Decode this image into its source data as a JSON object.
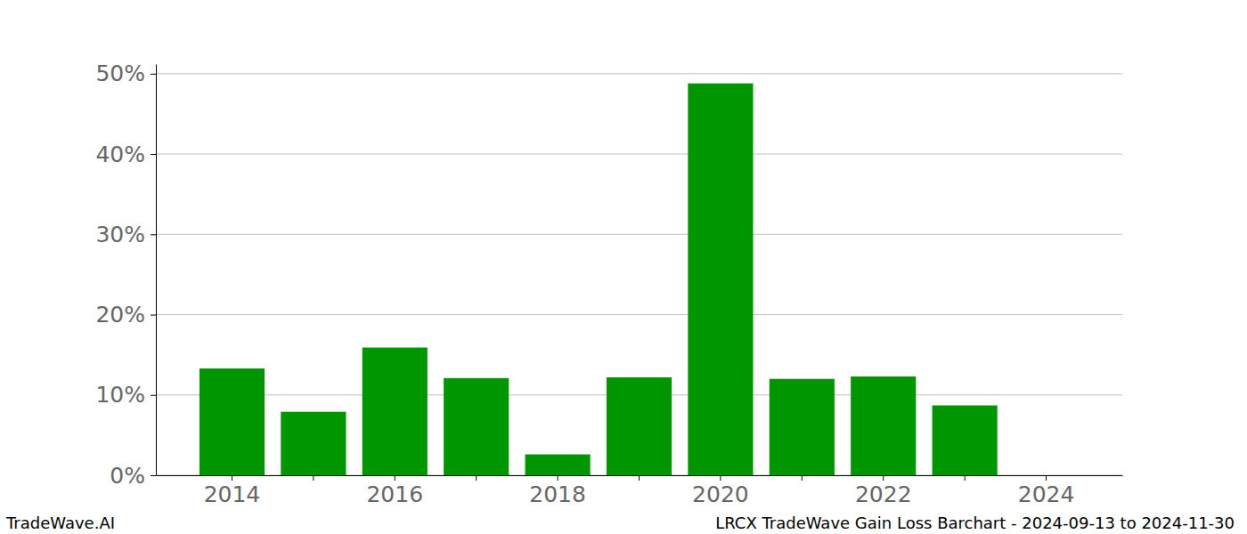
{
  "chart_data": {
    "type": "bar",
    "title": "LRCX TradeWave Gain Loss Barchart - 2024-09-13 to 2024-11-30",
    "credit": "TradeWave.AI",
    "categories": [
      "2014",
      null,
      "2016",
      null,
      "2018",
      null,
      "2020",
      null,
      "2022",
      null,
      "2024"
    ],
    "values": [
      13.3,
      7.9,
      15.9,
      12.1,
      2.6,
      12.2,
      48.8,
      12.0,
      12.3,
      8.7,
      0
    ],
    "color": "#009600",
    "ylim": [
      0,
      51.2
    ],
    "yticks": [
      {
        "value": 0,
        "label": "0%"
      },
      {
        "value": 10,
        "label": "10%"
      },
      {
        "value": 20,
        "label": "20%"
      },
      {
        "value": 30,
        "label": "30%"
      },
      {
        "value": 40,
        "label": "40%"
      },
      {
        "value": 50,
        "label": "50%"
      }
    ],
    "grid": true
  }
}
